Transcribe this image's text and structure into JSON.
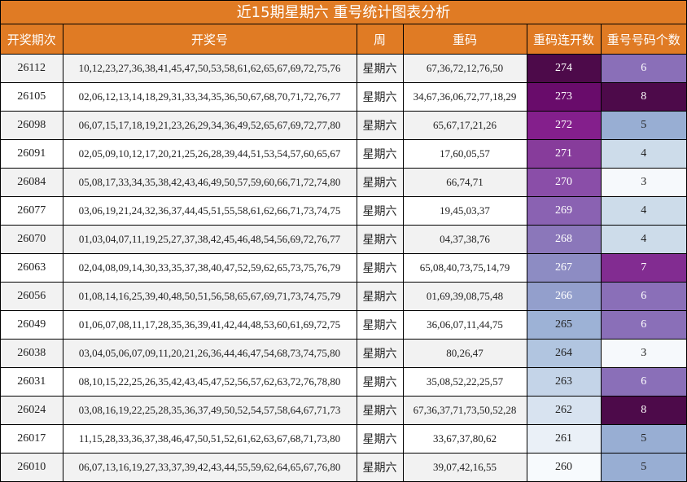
{
  "title": "近15期星期六 重号统计图表分析",
  "headers": [
    "开奖期次",
    "开奖号",
    "周",
    "重码",
    "重码连开数",
    "重号号码个数"
  ],
  "rows": [
    {
      "issue": "26112",
      "numbers": "10,12,23,27,36,38,41,45,47,50,53,58,61,62,65,67,69,72,75,76",
      "week": "星期六",
      "repeat": "67,36,72,12,76,50",
      "streak": "274",
      "count": "6",
      "streak_bg": "#4d0a4a",
      "streak_fg": "#ffffff",
      "count_bg": "#8a6fb8",
      "count_fg": "#ffffff"
    },
    {
      "issue": "26105",
      "numbers": "02,06,12,13,14,18,29,31,33,34,35,36,50,67,68,70,71,72,76,77",
      "week": "星期六",
      "repeat": "34,67,36,06,72,77,18,29",
      "streak": "273",
      "count": "8",
      "streak_bg": "#690c6b",
      "streak_fg": "#ffffff",
      "count_bg": "#4d0a4a",
      "count_fg": "#ffffff"
    },
    {
      "issue": "26098",
      "numbers": "06,07,15,17,18,19,21,23,26,29,34,36,49,52,65,67,69,72,77,80",
      "week": "星期六",
      "repeat": "65,67,17,21,26",
      "streak": "272",
      "count": "5",
      "streak_bg": "#841f8c",
      "streak_fg": "#ffffff",
      "count_bg": "#98aed3",
      "count_fg": "#222222"
    },
    {
      "issue": "26091",
      "numbers": "02,05,09,10,12,17,20,21,25,26,28,39,44,51,53,54,57,60,65,67",
      "week": "星期六",
      "repeat": "17,60,05,57",
      "streak": "271",
      "count": "4",
      "streak_bg": "#873c9b",
      "streak_fg": "#ffffff",
      "count_bg": "#cddcea",
      "count_fg": "#222222"
    },
    {
      "issue": "26084",
      "numbers": "05,08,17,33,34,35,38,42,43,46,49,50,57,59,60,66,71,72,74,80",
      "week": "星期六",
      "repeat": "66,74,71",
      "streak": "270",
      "count": "3",
      "streak_bg": "#8a4ea8",
      "streak_fg": "#ffffff",
      "count_bg": "#f6f9fc",
      "count_fg": "#222222"
    },
    {
      "issue": "26077",
      "numbers": "03,06,19,21,24,32,36,37,44,45,51,55,58,61,62,66,71,73,74,75",
      "week": "星期六",
      "repeat": "19,45,03,37",
      "streak": "269",
      "count": "4",
      "streak_bg": "#8a62b2",
      "streak_fg": "#ffffff",
      "count_bg": "#cddcea",
      "count_fg": "#222222"
    },
    {
      "issue": "26070",
      "numbers": "01,03,04,07,11,19,25,27,37,38,42,45,46,48,54,56,69,72,76,77",
      "week": "星期六",
      "repeat": "04,37,38,76",
      "streak": "268",
      "count": "4",
      "streak_bg": "#8b77ba",
      "streak_fg": "#ffffff",
      "count_bg": "#cddcea",
      "count_fg": "#222222"
    },
    {
      "issue": "26063",
      "numbers": "02,04,08,09,14,30,33,35,37,38,40,47,52,59,62,65,73,75,76,79",
      "week": "星期六",
      "repeat": "65,08,40,73,75,14,79",
      "streak": "267",
      "count": "7",
      "streak_bg": "#8d8cc3",
      "streak_fg": "#ffffff",
      "count_bg": "#822c91",
      "count_fg": "#ffffff"
    },
    {
      "issue": "26056",
      "numbers": "01,08,14,16,25,39,40,48,50,51,56,58,65,67,69,71,73,74,75,79",
      "week": "星期六",
      "repeat": "01,69,39,08,75,48",
      "streak": "266",
      "count": "6",
      "streak_bg": "#939fcc",
      "streak_fg": "#ffffff",
      "count_bg": "#8a6fb8",
      "count_fg": "#ffffff"
    },
    {
      "issue": "26049",
      "numbers": "01,06,07,08,11,17,28,35,36,39,41,42,44,48,53,60,61,69,72,75",
      "week": "星期六",
      "repeat": "36,06,07,11,44,75",
      "streak": "265",
      "count": "6",
      "streak_bg": "#9db2d6",
      "streak_fg": "#222222",
      "count_bg": "#8a6fb8",
      "count_fg": "#ffffff"
    },
    {
      "issue": "26038",
      "numbers": "03,04,05,06,07,09,11,20,21,26,36,44,46,47,54,68,73,74,75,80",
      "week": "星期六",
      "repeat": "80,26,47",
      "streak": "264",
      "count": "3",
      "streak_bg": "#b1c5e0",
      "streak_fg": "#222222",
      "count_bg": "#f6f9fc",
      "count_fg": "#222222"
    },
    {
      "issue": "26031",
      "numbers": "08,10,15,22,25,26,35,42,43,45,47,52,56,57,62,63,72,76,78,80",
      "week": "星期六",
      "repeat": "35,08,52,22,25,57",
      "streak": "263",
      "count": "6",
      "streak_bg": "#c4d4e8",
      "streak_fg": "#222222",
      "count_bg": "#8a6fb8",
      "count_fg": "#ffffff"
    },
    {
      "issue": "26024",
      "numbers": "03,08,16,19,22,25,28,35,36,37,49,50,52,54,57,58,64,67,71,73",
      "week": "星期六",
      "repeat": "67,36,37,71,73,50,52,28",
      "streak": "262",
      "count": "8",
      "streak_bg": "#d8e3f0",
      "streak_fg": "#222222",
      "count_bg": "#4d0a4a",
      "count_fg": "#ffffff"
    },
    {
      "issue": "26017",
      "numbers": "11,15,28,33,36,37,38,46,47,50,51,52,61,62,63,67,68,71,73,80",
      "week": "星期六",
      "repeat": "33,67,37,80,62",
      "streak": "261",
      "count": "5",
      "streak_bg": "#eaf0f7",
      "streak_fg": "#222222",
      "count_bg": "#98aed3",
      "count_fg": "#222222"
    },
    {
      "issue": "26010",
      "numbers": "06,07,13,16,19,27,33,37,39,42,43,44,55,59,62,64,65,67,76,80",
      "week": "星期六",
      "repeat": "39,07,42,16,55",
      "streak": "260",
      "count": "5",
      "streak_bg": "#f7fafd",
      "streak_fg": "#222222",
      "count_bg": "#98aed3",
      "count_fg": "#222222"
    }
  ]
}
